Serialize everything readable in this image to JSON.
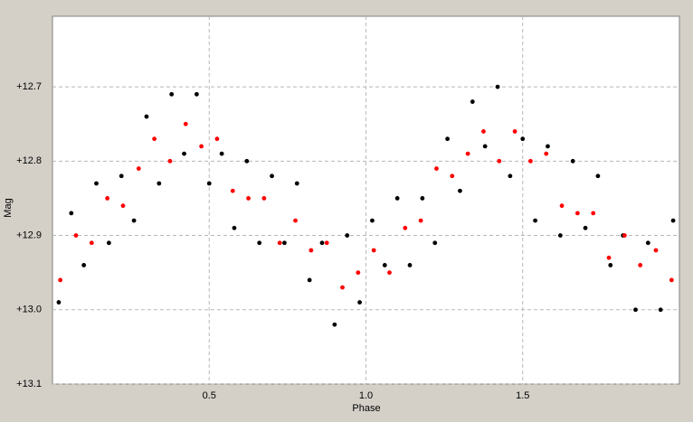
{
  "chart_data": {
    "type": "scatter",
    "x_label": "Phase",
    "y_label": "Mag",
    "xlim": [
      0,
      2
    ],
    "ylim": [
      12.605,
      13.1
    ],
    "y_inverted": true,
    "grid": true,
    "xticks": [
      0.5,
      {
        "value": 1,
        "label": "1.0"
      },
      1.5
    ],
    "yticks": [
      {
        "value": 12.7,
        "label": "+12.7"
      },
      {
        "value": 12.8,
        "label": "+12.8"
      },
      {
        "value": 12.9,
        "label": "+12.9"
      },
      {
        "value": 13.0,
        "label": "+13.0"
      },
      {
        "value": 13.1,
        "label": "+13.1"
      }
    ],
    "series": [
      {
        "color": "#000000",
        "x": [
          0.02,
          0.06,
          0.1,
          0.14,
          0.18,
          0.22,
          0.26,
          0.3,
          0.34,
          0.38,
          0.42,
          0.46,
          0.5,
          0.54,
          0.58,
          0.62,
          0.66,
          0.7,
          0.74,
          0.78,
          0.82,
          0.86,
          0.9,
          0.94,
          0.98,
          1.02,
          1.06,
          1.1,
          1.14,
          1.18,
          1.22,
          1.26,
          1.3,
          1.34,
          1.38,
          1.42,
          1.46,
          1.5,
          1.54,
          1.58,
          1.62,
          1.66,
          1.7,
          1.74,
          1.78,
          1.82,
          1.86,
          1.9,
          1.94,
          1.98
        ],
        "values": [
          12.99,
          12.87,
          12.94,
          12.83,
          12.91,
          12.82,
          12.88,
          12.74,
          12.83,
          12.71,
          12.79,
          12.71,
          12.83,
          12.79,
          12.89,
          12.8,
          12.91,
          12.82,
          12.91,
          12.83,
          12.96,
          12.91,
          13.02,
          12.9,
          12.99,
          12.88,
          12.94,
          12.85,
          12.94,
          12.85,
          12.91,
          12.77,
          12.84,
          12.72,
          12.78,
          12.7,
          12.82,
          12.77,
          12.88,
          12.78,
          12.9,
          12.8,
          12.89,
          12.82,
          12.94,
          12.9,
          13.0,
          12.91,
          13.0,
          12.88
        ]
      },
      {
        "color": "#ff0000",
        "x": [
          0.025,
          0.075,
          0.125,
          0.175,
          0.225,
          0.275,
          0.325,
          0.375,
          0.425,
          0.475,
          0.525,
          0.575,
          0.625,
          0.675,
          0.725,
          0.775,
          0.825,
          0.875,
          0.925,
          0.975,
          1.025,
          1.075,
          1.125,
          1.175,
          1.225,
          1.275,
          1.325,
          1.375,
          1.425,
          1.475,
          1.525,
          1.575,
          1.625,
          1.675,
          1.725,
          1.775,
          1.825,
          1.875,
          1.925,
          1.975
        ],
        "values": [
          12.96,
          12.9,
          12.91,
          12.85,
          12.86,
          12.81,
          12.77,
          12.8,
          12.75,
          12.78,
          12.77,
          12.84,
          12.85,
          12.85,
          12.91,
          12.88,
          12.92,
          12.91,
          12.97,
          12.95,
          12.92,
          12.95,
          12.89,
          12.88,
          12.81,
          12.82,
          12.79,
          12.76,
          12.8,
          12.76,
          12.8,
          12.79,
          12.86,
          12.87,
          12.87,
          12.93,
          12.9,
          12.94,
          12.92,
          12.96
        ]
      }
    ]
  }
}
